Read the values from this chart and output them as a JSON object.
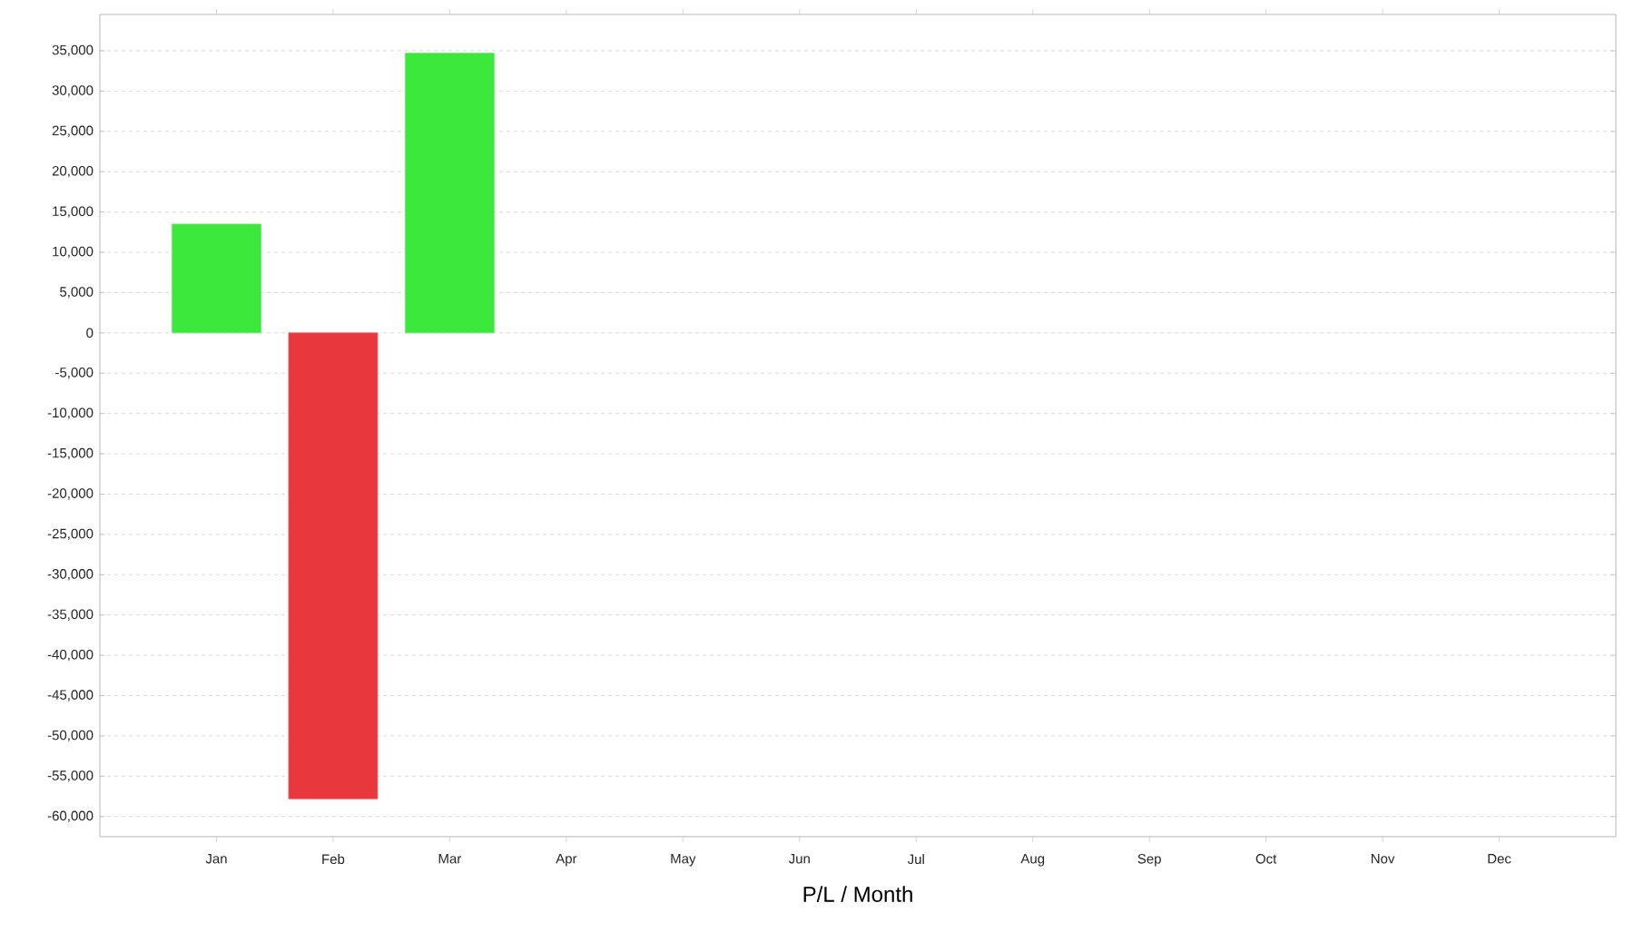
{
  "chart_data": {
    "type": "bar",
    "xlabel": "P/L / Month",
    "categories": [
      "Jan",
      "Feb",
      "Mar",
      "Apr",
      "May",
      "Jun",
      "Jul",
      "Aug",
      "Sep",
      "Oct",
      "Nov",
      "Dec"
    ],
    "values": [
      13500,
      -57800,
      34700,
      null,
      null,
      null,
      null,
      null,
      null,
      null,
      null,
      null
    ],
    "colors": [
      "#3de83d",
      "#e8383d",
      "#3de83d",
      null,
      null,
      null,
      null,
      null,
      null,
      null,
      null,
      null
    ],
    "ylim": [
      -62500,
      39500
    ],
    "yticks": [
      {
        "value": -60000,
        "label": "-60,000"
      },
      {
        "value": -55000,
        "label": "-55,000"
      },
      {
        "value": -50000,
        "label": "-50,000"
      },
      {
        "value": -45000,
        "label": "-45,000"
      },
      {
        "value": -40000,
        "label": "-40,000"
      },
      {
        "value": -35000,
        "label": "-35,000"
      },
      {
        "value": -30000,
        "label": "-30,000"
      },
      {
        "value": -25000,
        "label": "-25,000"
      },
      {
        "value": -20000,
        "label": "-20,000"
      },
      {
        "value": -15000,
        "label": "-15,000"
      },
      {
        "value": -10000,
        "label": "-10,000"
      },
      {
        "value": -5000,
        "label": "-5,000"
      },
      0,
      {
        "value": 5000,
        "label": "5,000"
      },
      {
        "value": 10000,
        "label": "10,000"
      },
      {
        "value": 15000,
        "label": "15,000"
      },
      {
        "value": 20000,
        "label": "20,000"
      },
      {
        "value": 25000,
        "label": "25,000"
      },
      {
        "value": 30000,
        "label": "30,000"
      },
      {
        "value": 35000,
        "label": "35,000"
      }
    ],
    "grid": "y"
  }
}
